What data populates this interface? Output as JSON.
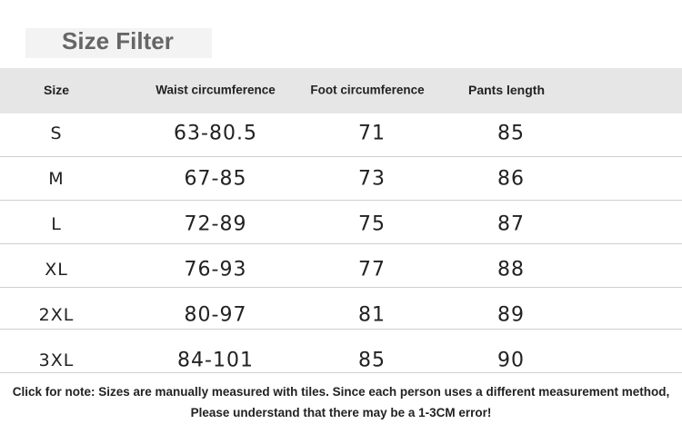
{
  "header": {
    "title": "Size Filter"
  },
  "table": {
    "columns": [
      "Size",
      "Waist circumference",
      "Foot circumference",
      "Pants length"
    ],
    "rows": [
      [
        "S",
        "63-80.5",
        "71",
        "85"
      ],
      [
        "M",
        "67-85",
        "73",
        "86"
      ],
      [
        "L",
        "72-89",
        "75",
        "87"
      ],
      [
        "XL",
        "76-93",
        "77",
        "88"
      ],
      [
        "2XL",
        "80-97",
        "81",
        "89"
      ],
      [
        "3XL",
        "84-101",
        "85",
        "90"
      ]
    ]
  },
  "note": [
    "Click for note: Sizes are manually measured with tiles. Since each person uses a different measurement method,",
    "Please understand that there may be a 1-3CM error!"
  ]
}
